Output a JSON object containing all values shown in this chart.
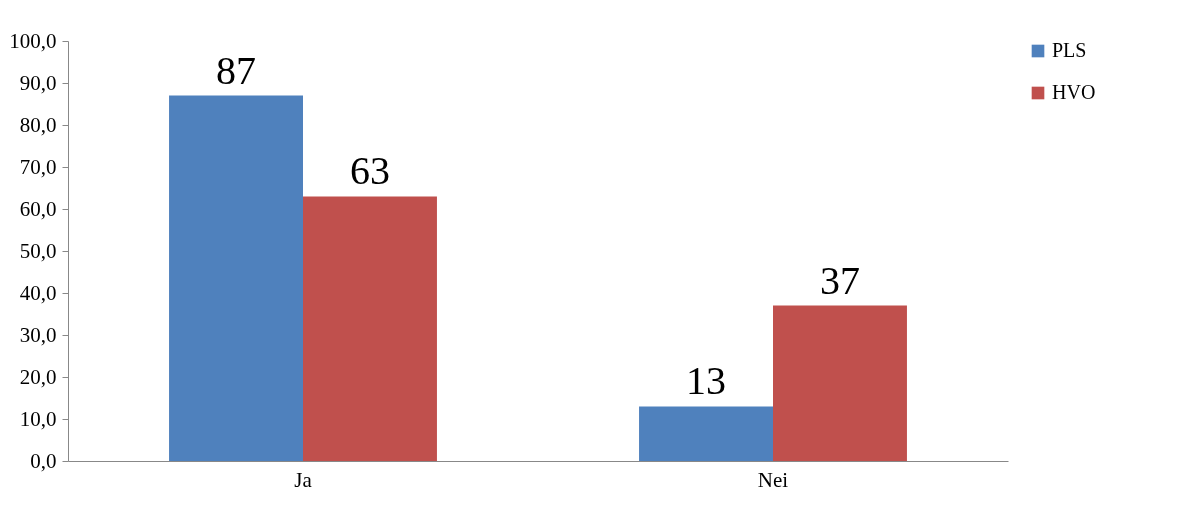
{
  "chart_data": {
    "type": "bar",
    "categories": [
      "Ja",
      "Nei"
    ],
    "series": [
      {
        "name": "PLS",
        "color": "#4f81bd",
        "values": [
          87,
          13
        ]
      },
      {
        "name": "HVO",
        "color": "#c0504d",
        "values": [
          63,
          37
        ]
      }
    ],
    "ylim": [
      0,
      100
    ],
    "yticks": [
      {
        "value": 0,
        "label": "0,0"
      },
      {
        "value": 10,
        "label": "10,0"
      },
      {
        "value": 20,
        "label": "20,0"
      },
      {
        "value": 30,
        "label": "30,0"
      },
      {
        "value": 40,
        "label": "40,0"
      },
      {
        "value": 50,
        "label": "50,0"
      },
      {
        "value": 60,
        "label": "60,0"
      },
      {
        "value": 70,
        "label": "70,0"
      },
      {
        "value": 80,
        "label": "80,0"
      },
      {
        "value": 90,
        "label": "90,0"
      },
      {
        "value": 100,
        "label": "100,0"
      }
    ],
    "grid": false,
    "legend": "right",
    "data_labels": true
  }
}
